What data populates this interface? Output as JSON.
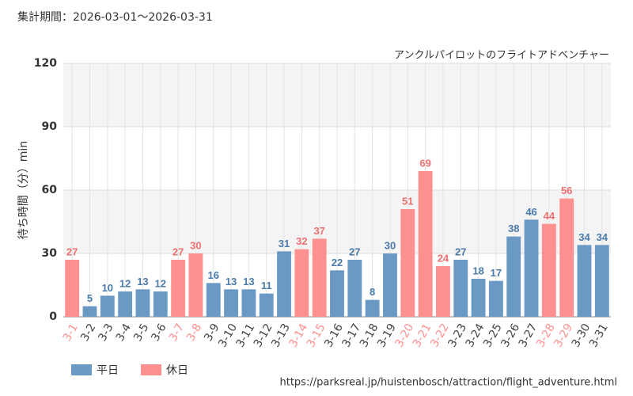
{
  "chart_data": {
    "type": "bar",
    "subtitle": "集計期間：2026-03-01～2026-03-31",
    "title": "アンクルパイロットのフライトアドベンチャー",
    "y_label": "待ち時間（分）min",
    "source": "https://parksreal.jp/huistenbosch/attraction/flight_adventure.html",
    "categories": [
      "3-1",
      "3-2",
      "3-3",
      "3-4",
      "3-5",
      "3-6",
      "3-7",
      "3-8",
      "3-9",
      "3-10",
      "3-11",
      "3-12",
      "3-13",
      "3-14",
      "3-15",
      "3-16",
      "3-17",
      "3-18",
      "3-19",
      "3-20",
      "3-21",
      "3-22",
      "3-23",
      "3-24",
      "3-25",
      "3-26",
      "3-27",
      "3-28",
      "3-29",
      "3-30",
      "3-31"
    ],
    "series": [
      {
        "name": "平日",
        "color": "#6a9ac4",
        "values": [
          null,
          5,
          10,
          12,
          13,
          12,
          null,
          null,
          16,
          13,
          13,
          11,
          31,
          null,
          null,
          22,
          27,
          8,
          30,
          null,
          null,
          null,
          27,
          18,
          17,
          38,
          46,
          null,
          null,
          34,
          34
        ]
      },
      {
        "name": "休日",
        "color": "#ff9090",
        "values": [
          27,
          null,
          null,
          null,
          null,
          null,
          27,
          30,
          null,
          null,
          null,
          null,
          null,
          32,
          37,
          null,
          null,
          null,
          null,
          51,
          69,
          24,
          null,
          null,
          null,
          null,
          null,
          44,
          56,
          null,
          null
        ]
      }
    ],
    "ylim": [
      0,
      120
    ],
    "yticks": [
      0,
      30,
      60,
      90,
      120
    ],
    "grid": true
  }
}
